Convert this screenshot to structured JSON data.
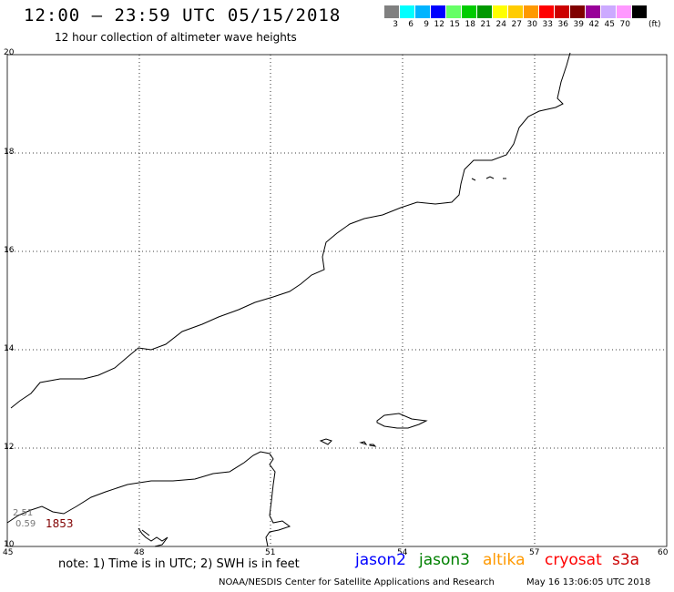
{
  "header": {
    "title": "12:00 – 23:59 UTC 05/15/2018",
    "subtitle": "12 hour collection of altimeter wave heights"
  },
  "legend": {
    "swatches": [
      {
        "label": "3",
        "color": "#808080"
      },
      {
        "label": "6",
        "color": "#00ffff"
      },
      {
        "label": "9",
        "color": "#00b4ff"
      },
      {
        "label": "12",
        "color": "#0000ff"
      },
      {
        "label": "15",
        "color": "#66ff66"
      },
      {
        "label": "18",
        "color": "#00cc00"
      },
      {
        "label": "21",
        "color": "#009900"
      },
      {
        "label": "24",
        "color": "#ffff00"
      },
      {
        "label": "27",
        "color": "#ffcc00"
      },
      {
        "label": "30",
        "color": "#ff9900"
      },
      {
        "label": "33",
        "color": "#ff0000"
      },
      {
        "label": "36",
        "color": "#cc0000"
      },
      {
        "label": "39",
        "color": "#800000"
      },
      {
        "label": "42",
        "color": "#990099"
      },
      {
        "label": "45",
        "color": "#ccaaff"
      },
      {
        "label": "70",
        "color": "#ff99ff"
      },
      {
        "label": "",
        "color": "#000000"
      }
    ],
    "unit": "(ft)"
  },
  "axes": {
    "lon_ticks": [
      "45",
      "48",
      "51",
      "54",
      "57",
      "60"
    ],
    "lat_ticks": [
      "20",
      "18",
      "16",
      "14",
      "12",
      "10"
    ]
  },
  "observations": {
    "values": [
      "2.51",
      "0.59"
    ],
    "time": "1853",
    "time_color": "#800000"
  },
  "footer": {
    "note": "note: 1) Time is in UTC; 2) SWH is in feet",
    "satellites": [
      {
        "name": "jason2",
        "color": "#0000ff"
      },
      {
        "name": "jason3",
        "color": "#008000"
      },
      {
        "name": "altika",
        "color": "#ff9900"
      },
      {
        "name": "cryosat",
        "color": "#ff0000"
      },
      {
        "name": "s3a",
        "color": "#cc0000"
      }
    ],
    "credit": "NOAA/NESDIS Center for Satellite Applications and Research",
    "timestamp": "May 16 13:06:05 UTC 2018"
  }
}
